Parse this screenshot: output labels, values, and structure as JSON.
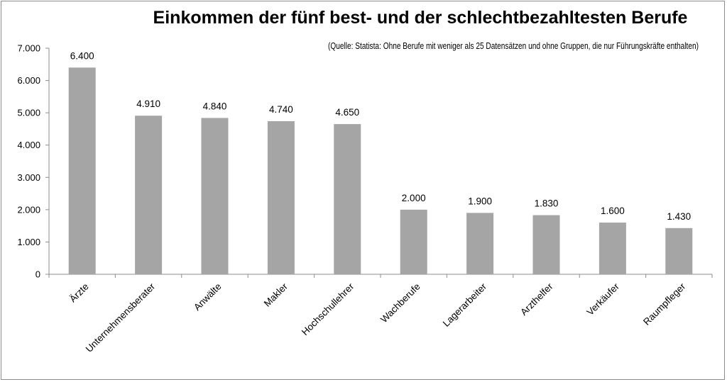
{
  "chart_data": {
    "type": "bar",
    "title": "Einkommen der fünf best- und der schlechtbezahltesten Berufe",
    "subtitle": "(Quelle: Statista: Ohne Berufe mit weniger als 25 Datensätzen und ohne Gruppen, die nur Führungskräfte enthalten)",
    "categories": [
      "Ärzte",
      "Unternehmensberater",
      "Anwälte",
      "Makler",
      "Hochschullehrer",
      "Wachberufe",
      "Lagerarbeiter",
      "Arzthelfer",
      "Verkäufer",
      "Raumpfleger"
    ],
    "values": [
      6400,
      4910,
      4840,
      4740,
      4650,
      2000,
      1900,
      1830,
      1600,
      1430
    ],
    "value_labels": [
      "6.400",
      "4.910",
      "4.840",
      "4.740",
      "4.650",
      "2.000",
      "1.900",
      "1.830",
      "1.600",
      "1.430"
    ],
    "yticks": [
      0,
      1000,
      2000,
      3000,
      4000,
      5000,
      6000,
      7000
    ],
    "ytick_labels": [
      "0",
      "1.000",
      "2.000",
      "3.000",
      "4.000",
      "5.000",
      "6.000",
      "7.000"
    ],
    "ylim": [
      0,
      7000
    ],
    "xlabel": "",
    "ylabel": "",
    "grid": false,
    "legend": "none",
    "bar_color": "#a5a5a5",
    "axis_color": "#8c8c8c"
  }
}
